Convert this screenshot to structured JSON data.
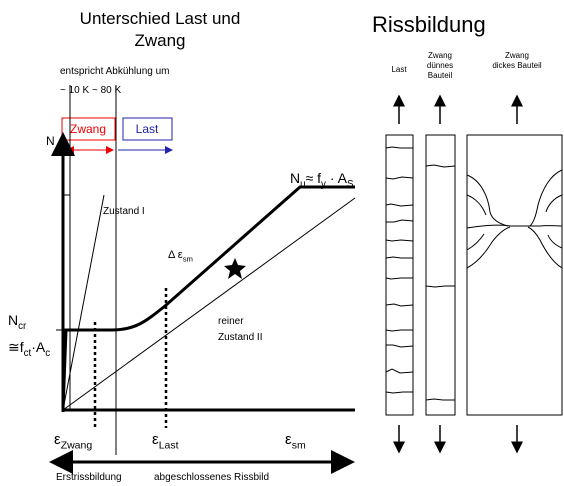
{
  "left": {
    "title": [
      "Unterschied Last und",
      "Zwang"
    ],
    "cooling_note": "entspricht Abkühlung um",
    "temp_range": "~ 10 K ~ 80 K",
    "zwang_box": "Zwang",
    "last_box": "Last",
    "axis_y": "N",
    "n_u": [
      "N",
      "u",
      "≈ f",
      "y",
      " · A",
      "S"
    ],
    "zustand_1": "Zustand I",
    "delta_eps": [
      "Δ ε",
      "sm"
    ],
    "zustand_2": [
      "reiner",
      "Zustand II"
    ],
    "n_cr": [
      [
        "N",
        "cr"
      ],
      [
        "≅f",
        "ct",
        "·A",
        "c"
      ]
    ],
    "eps_zwang": [
      "ε",
      "Zwang"
    ],
    "eps_last": [
      "ε",
      "Last"
    ],
    "eps_sm": [
      "ε",
      "sm"
    ],
    "phase_1": "Erstrissbildung",
    "phase_2": "abgeschlossenes Rissbild"
  },
  "right": {
    "title": "Rissbildung",
    "col_last": [
      "Last"
    ],
    "col_thin": [
      "Zwang",
      "dünnes",
      "Bauteil"
    ],
    "col_thick": [
      "Zwang",
      "dickes Bauteil"
    ]
  }
}
